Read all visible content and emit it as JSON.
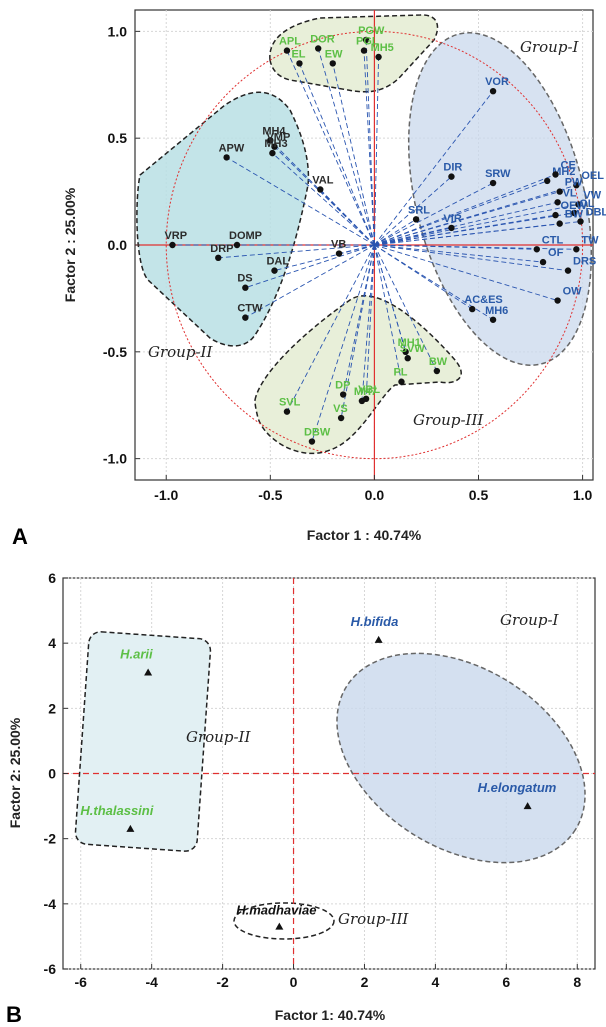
{
  "chart_data": [
    {
      "type": "scatter",
      "panel": "A",
      "xlabel": "Factor 1 : 40.74%",
      "ylabel": "Factor 2 : 25.00%",
      "xlim": [
        -1.15,
        1.05
      ],
      "ylim": [
        -1.1,
        1.1
      ],
      "xticks": [
        "-1.0",
        "-0.5",
        "0.0",
        "0.5",
        "1.0"
      ],
      "yticks": [
        "-1.0",
        "-0.5",
        "0.0",
        "0.5",
        "1.0"
      ],
      "grid": true,
      "unit_circle": true,
      "group_labels": [
        "Group-I",
        "Group-II",
        "Group-III"
      ],
      "colors": {
        "green": "#5cbf45",
        "blue": "#2a5aa8",
        "red": "#e03030"
      },
      "points": [
        {
          "label": "VOR",
          "x": 0.57,
          "y": 0.72,
          "color": "blue"
        },
        {
          "label": "DIR",
          "x": 0.37,
          "y": 0.32,
          "color": "blue"
        },
        {
          "label": "SRW",
          "x": 0.57,
          "y": 0.29,
          "color": "blue"
        },
        {
          "label": "SRL",
          "x": 0.2,
          "y": 0.12,
          "color": "blue"
        },
        {
          "label": "VIR",
          "x": 0.37,
          "y": 0.08,
          "color": "blue"
        },
        {
          "label": "MH2",
          "x": 0.83,
          "y": 0.3,
          "color": "blue"
        },
        {
          "label": "CE",
          "x": 0.87,
          "y": 0.33,
          "color": "blue"
        },
        {
          "label": "OEL",
          "x": 0.97,
          "y": 0.28,
          "color": "blue"
        },
        {
          "label": "PW",
          "x": 0.89,
          "y": 0.25,
          "color": "blue"
        },
        {
          "label": "VL",
          "x": 0.88,
          "y": 0.2,
          "color": "blue"
        },
        {
          "label": "VW",
          "x": 0.98,
          "y": 0.19,
          "color": "blue"
        },
        {
          "label": "OEW",
          "x": 0.87,
          "y": 0.14,
          "color": "blue"
        },
        {
          "label": "OL",
          "x": 0.96,
          "y": 0.15,
          "color": "blue"
        },
        {
          "label": "BW",
          "x": 0.89,
          "y": 0.1,
          "color": "blue"
        },
        {
          "label": "DBL",
          "x": 0.99,
          "y": 0.11,
          "color": "blue"
        },
        {
          "label": "CTL",
          "x": 0.78,
          "y": -0.02,
          "color": "blue"
        },
        {
          "label": "TW",
          "x": 0.97,
          "y": -0.02,
          "color": "blue"
        },
        {
          "label": "OF",
          "x": 0.81,
          "y": -0.08,
          "color": "blue"
        },
        {
          "label": "DRS",
          "x": 0.93,
          "y": -0.12,
          "color": "blue"
        },
        {
          "label": "OW",
          "x": 0.88,
          "y": -0.26,
          "color": "blue"
        },
        {
          "label": "AC&ES",
          "x": 0.47,
          "y": -0.3,
          "color": "blue"
        },
        {
          "label": "MH6",
          "x": 0.57,
          "y": -0.35,
          "color": "blue"
        },
        {
          "label": "APL",
          "x": -0.42,
          "y": 0.91,
          "color": "green"
        },
        {
          "label": "DOR",
          "x": -0.27,
          "y": 0.92,
          "color": "green"
        },
        {
          "label": "EL",
          "x": -0.36,
          "y": 0.85,
          "color": "green"
        },
        {
          "label": "EW",
          "x": -0.2,
          "y": 0.85,
          "color": "green"
        },
        {
          "label": "PGW",
          "x": -0.04,
          "y": 0.96,
          "color": "green"
        },
        {
          "label": "PGL",
          "x": -0.05,
          "y": 0.91,
          "color": "green"
        },
        {
          "label": "MH5",
          "x": 0.02,
          "y": 0.88,
          "color": "green"
        },
        {
          "label": "MH1",
          "x": 0.15,
          "y": -0.5,
          "color": "green"
        },
        {
          "label": "SVW",
          "x": 0.16,
          "y": -0.53,
          "color": "green"
        },
        {
          "label": "BW",
          "x": 0.3,
          "y": -0.59,
          "color": "green"
        },
        {
          "label": "PL",
          "x": 0.13,
          "y": -0.64,
          "color": "green"
        },
        {
          "label": "DP",
          "x": -0.15,
          "y": -0.7,
          "color": "green"
        },
        {
          "label": "VBL",
          "x": -0.04,
          "y": -0.72,
          "color": "green"
        },
        {
          "label": "MH7",
          "x": -0.06,
          "y": -0.73,
          "color": "green"
        },
        {
          "label": "SVL",
          "x": -0.42,
          "y": -0.78,
          "color": "green"
        },
        {
          "label": "VS",
          "x": -0.16,
          "y": -0.81,
          "color": "green"
        },
        {
          "label": "DBW",
          "x": -0.3,
          "y": -0.92,
          "color": "green"
        },
        {
          "label": "MH4",
          "x": -0.5,
          "y": 0.49,
          "color": "gray"
        },
        {
          "label": "VMP",
          "x": -0.48,
          "y": 0.46,
          "color": "gray"
        },
        {
          "label": "MH3",
          "x": -0.49,
          "y": 0.43,
          "color": "gray"
        },
        {
          "label": "APW",
          "x": -0.71,
          "y": 0.41,
          "color": "gray"
        },
        {
          "label": "VAL",
          "x": -0.26,
          "y": 0.26,
          "color": "gray"
        },
        {
          "label": "VRP",
          "x": -0.97,
          "y": 0.0,
          "color": "gray"
        },
        {
          "label": "DOMP",
          "x": -0.66,
          "y": 0.0,
          "color": "gray"
        },
        {
          "label": "DRP",
          "x": -0.75,
          "y": -0.06,
          "color": "gray"
        },
        {
          "label": "VB",
          "x": -0.17,
          "y": -0.04,
          "color": "gray"
        },
        {
          "label": "DAL",
          "x": -0.48,
          "y": -0.12,
          "color": "gray"
        },
        {
          "label": "DS",
          "x": -0.62,
          "y": -0.2,
          "color": "gray"
        },
        {
          "label": "CTW",
          "x": -0.62,
          "y": -0.34,
          "color": "gray"
        }
      ]
    },
    {
      "type": "scatter",
      "panel": "B",
      "xlabel": "Factor 1: 40.74%",
      "ylabel": "Factor 2: 25.00%",
      "xlim": [
        -6.5,
        8.5
      ],
      "ylim": [
        -6,
        6
      ],
      "xticks": [
        "-6",
        "-4",
        "-2",
        "0",
        "2",
        "4",
        "6",
        "8"
      ],
      "yticks": [
        "-6",
        "-4",
        "-2",
        "0",
        "2",
        "4",
        "6"
      ],
      "grid": true,
      "group_labels": [
        "Group-I",
        "Group-II",
        "Group-III"
      ],
      "points": [
        {
          "label": "H.bifida",
          "x": 2.4,
          "y": 4.1,
          "color": "blue"
        },
        {
          "label": "H.elongatum",
          "x": 6.6,
          "y": -1.0,
          "color": "blue"
        },
        {
          "label": "H.arii",
          "x": -4.1,
          "y": 3.1,
          "color": "green"
        },
        {
          "label": "H.thalassini",
          "x": -4.6,
          "y": -1.7,
          "color": "green"
        },
        {
          "label": "H.madhaviae",
          "x": -0.4,
          "y": -4.7,
          "color": "black"
        }
      ]
    }
  ]
}
